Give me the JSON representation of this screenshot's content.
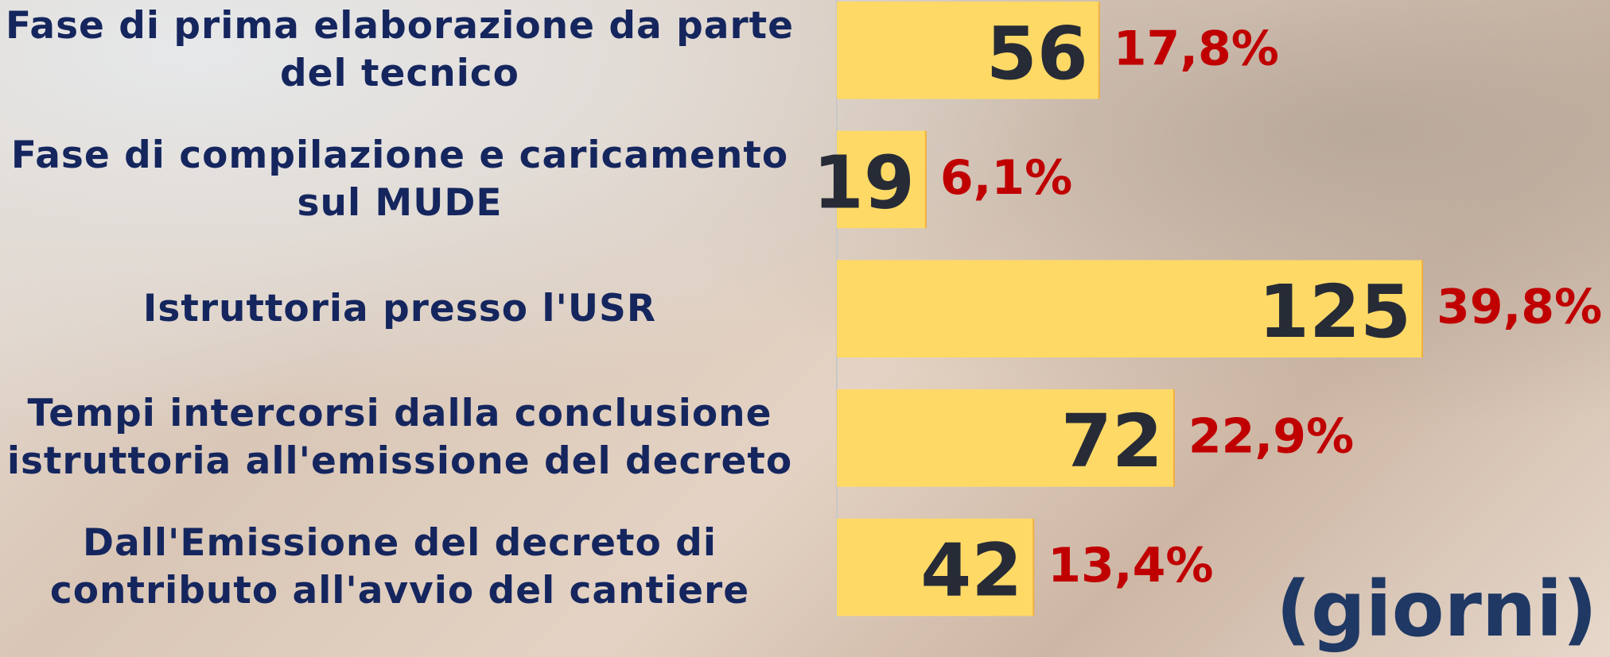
{
  "chart_data": {
    "type": "bar",
    "orientation": "horizontal",
    "categories": [
      "Fase di prima elaborazione da parte del tecnico",
      "Fase di compilazione e caricamento sul MUDE",
      "Istruttoria presso l'USR",
      "Tempi intercorsi dalla conclusione istruttoria all'emissione del decreto",
      "Dall'Emissione del decreto di contributo all'avvio del cantiere"
    ],
    "values": [
      56,
      19,
      125,
      72,
      42
    ],
    "color": "#ffd966",
    "shares": {
      "values": [
        17.8,
        6.1,
        39.8,
        22.9,
        13.4
      ],
      "value_labels": [
        "17,8%",
        "6,1%",
        "39,8%",
        "22,9%",
        "13,4%"
      ],
      "color": "#c00000"
    },
    "unit_label": "(giorni)",
    "xlim": [
      0,
      125
    ]
  }
}
